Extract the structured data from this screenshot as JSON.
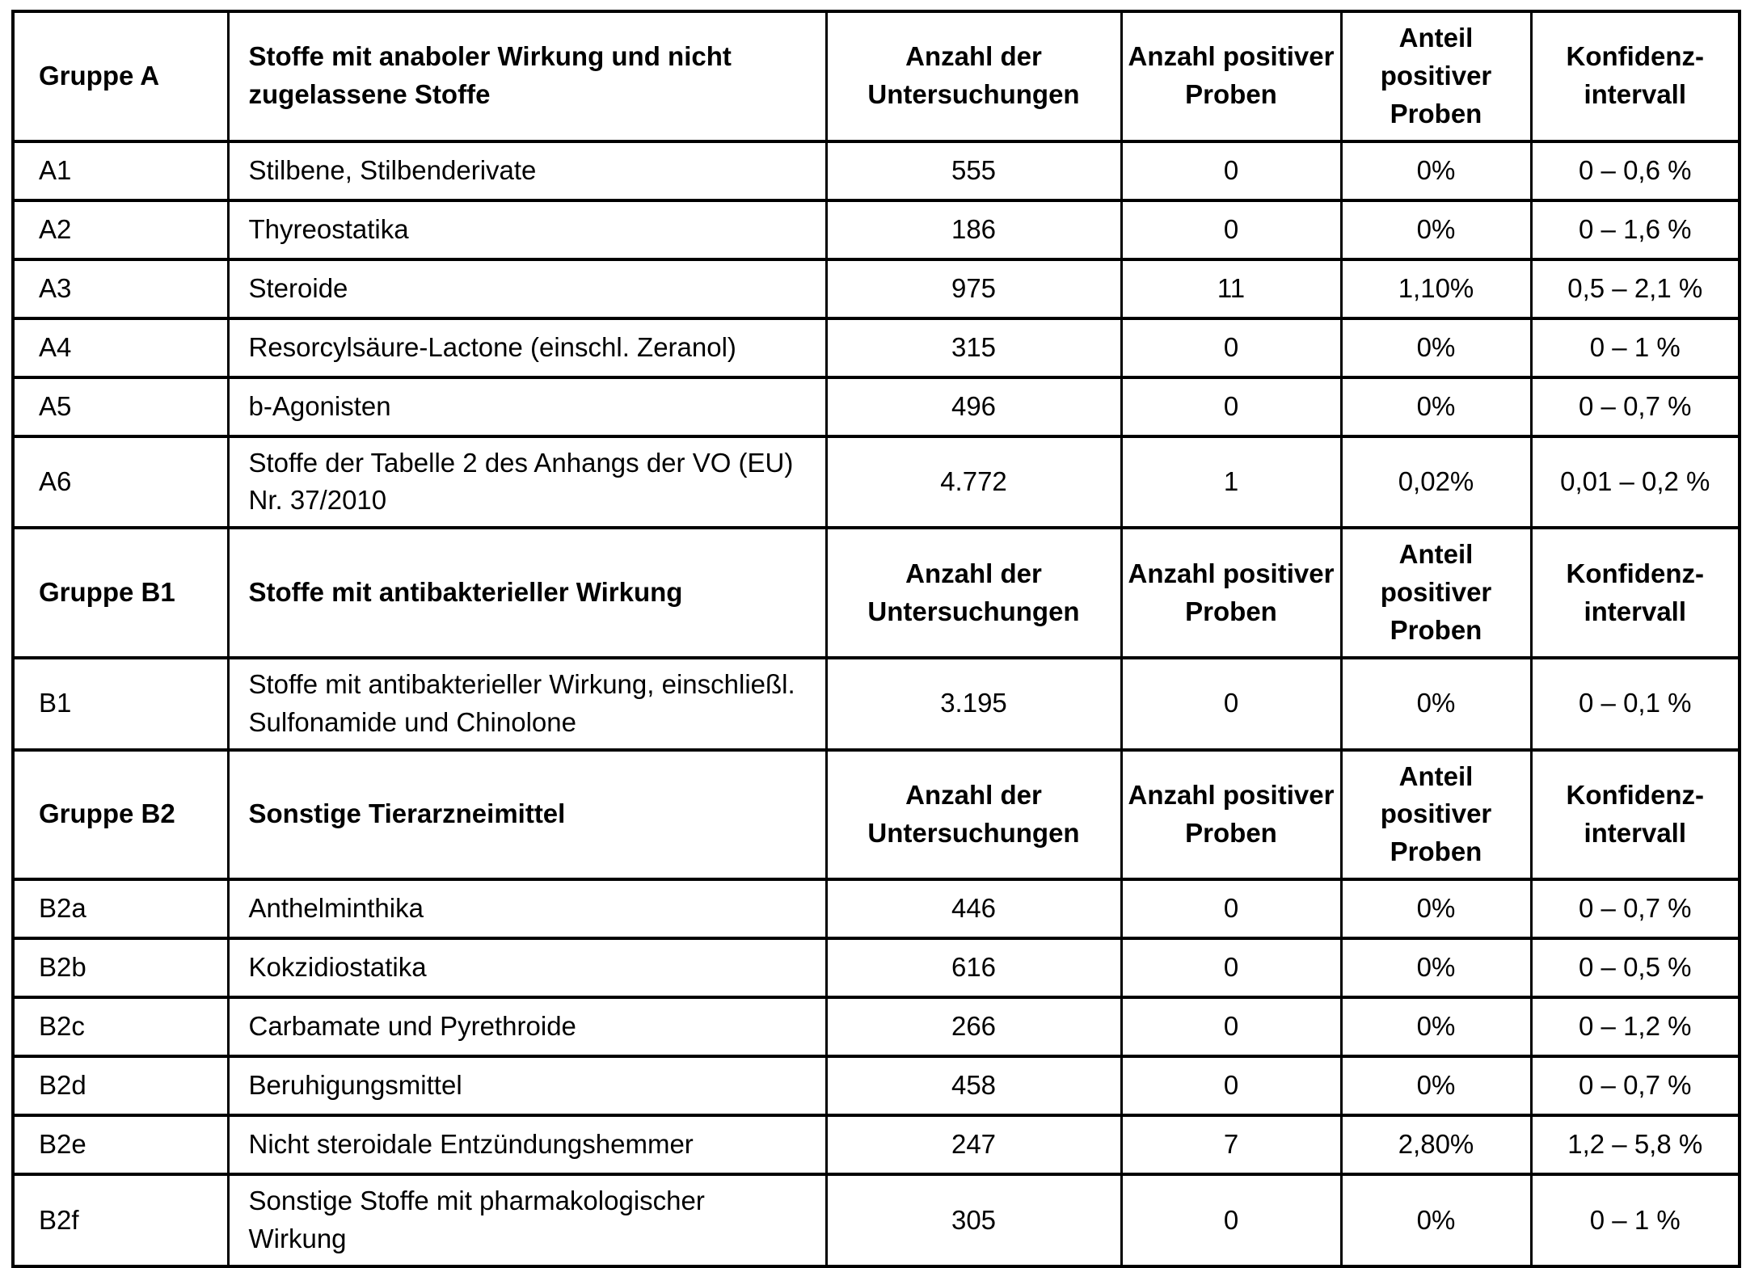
{
  "page": {
    "background_color": "#ffffff",
    "text_color": "#000000",
    "border_color": "#000000"
  },
  "table": {
    "repeated_column_headers": {
      "count_label": "Anzahl der Untersuchungen",
      "positive_label": "Anzahl positiver Proben",
      "share_label": "Anteil positiver Proben",
      "ci_label": "Konfidenz-intervall"
    },
    "sections": [
      {
        "group_label": "Gruppe A",
        "group_title": "Stoffe mit anaboler Wirkung und nicht zugelassene Stoffe",
        "rows": [
          {
            "code": "A1",
            "substance": "Stilbene, Stilbenderivate",
            "untersuchungen": "555",
            "positive": "0",
            "anteil": "0%",
            "konfidenzintervall": "0 – 0,6 %"
          },
          {
            "code": "A2",
            "substance": "Thyreostatika",
            "untersuchungen": "186",
            "positive": "0",
            "anteil": "0%",
            "konfidenzintervall": "0 – 1,6 %"
          },
          {
            "code": "A3",
            "substance": "Steroide",
            "untersuchungen": "975",
            "positive": "11",
            "anteil": "1,10%",
            "konfidenzintervall": "0,5 – 2,1 %"
          },
          {
            "code": "A4",
            "substance": "Resorcylsäure-Lactone (einschl. Zeranol)",
            "untersuchungen": "315",
            "positive": "0",
            "anteil": "0%",
            "konfidenzintervall": "0 – 1 %"
          },
          {
            "code": "A5",
            "substance": "b-Agonisten",
            "untersuchungen": "496",
            "positive": "0",
            "anteil": "0%",
            "konfidenzintervall": "0 – 0,7 %"
          },
          {
            "code": "A6",
            "substance": "Stoffe der Tabelle 2 des Anhangs der VO (EU) Nr. 37/2010",
            "untersuchungen": "4.772",
            "positive": "1",
            "anteil": "0,02%",
            "konfidenzintervall": "0,01 – 0,2 %"
          }
        ]
      },
      {
        "group_label": "Gruppe B1",
        "group_title": "Stoffe mit antibakterieller Wirkung",
        "rows": [
          {
            "code": "B1",
            "substance": "Stoffe mit antibakterieller Wirkung, einschließl. Sulfonamide und Chinolone",
            "untersuchungen": "3.195",
            "positive": "0",
            "anteil": "0%",
            "konfidenzintervall": "0 – 0,1 %"
          }
        ]
      },
      {
        "group_label": "Gruppe B2",
        "group_title": "Sonstige Tierarzneimittel",
        "rows": [
          {
            "code": "B2a",
            "substance": "Anthelminthika",
            "untersuchungen": "446",
            "positive": "0",
            "anteil": "0%",
            "konfidenzintervall": "0 – 0,7 %"
          },
          {
            "code": "B2b",
            "substance": "Kokzidiostatika",
            "untersuchungen": "616",
            "positive": "0",
            "anteil": "0%",
            "konfidenzintervall": "0 – 0,5 %"
          },
          {
            "code": "B2c",
            "substance": "Carbamate und Pyrethroide",
            "untersuchungen": "266",
            "positive": "0",
            "anteil": "0%",
            "konfidenzintervall": "0 – 1,2 %"
          },
          {
            "code": "B2d",
            "substance": "Beruhigungsmittel",
            "untersuchungen": "458",
            "positive": "0",
            "anteil": "0%",
            "konfidenzintervall": "0 – 0,7 %"
          },
          {
            "code": "B2e",
            "substance": "Nicht steroidale Entzündungshemmer",
            "untersuchungen": "247",
            "positive": "7",
            "anteil": "2,80%",
            "konfidenzintervall": "1,2 – 5,8 %"
          },
          {
            "code": "B2f",
            "substance": "Sonstige Stoffe mit pharmakologischer Wirkung",
            "untersuchungen": "305",
            "positive": "0",
            "anteil": "0%",
            "konfidenzintervall": "0 – 1 %"
          }
        ]
      }
    ]
  }
}
